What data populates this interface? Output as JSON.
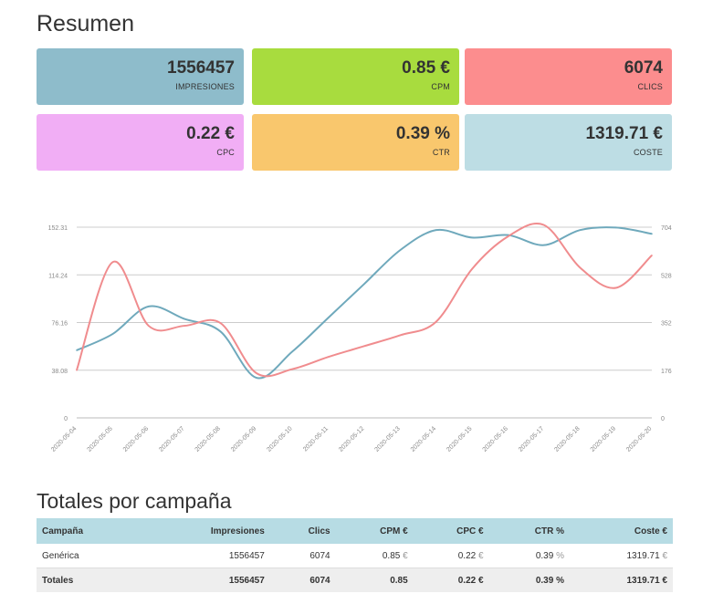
{
  "summary": {
    "title": "Resumen",
    "cards": [
      {
        "value": "1556457",
        "label": "IMPRESIONES",
        "color": "#8ebccb"
      },
      {
        "value": "0.85 €",
        "label": "CPM",
        "color": "#a8dc3e"
      },
      {
        "value": "6074",
        "label": "CLICS",
        "color": "#fc8d8e"
      },
      {
        "value": "0.22 €",
        "label": "CPC",
        "color": "#f1aef5"
      },
      {
        "value": "0.39 %",
        "label": "CTR",
        "color": "#f9c76d"
      },
      {
        "value": "1319.71 €",
        "label": "COSTE",
        "color": "#bddde4"
      }
    ]
  },
  "chart_data": {
    "type": "line",
    "x": [
      "2020-05-04",
      "2020-05-05",
      "2020-05-06",
      "2020-05-07",
      "2020-05-08",
      "2020-05-09",
      "2020-05-10",
      "2020-05-11",
      "2020-05-12",
      "2020-05-13",
      "2020-05-14",
      "2020-05-15",
      "2020-05-16",
      "2020-05-17",
      "2020-05-18",
      "2020-05-19",
      "2020-05-20"
    ],
    "left_axis": {
      "ticks": [
        "0",
        "38.08",
        "76.16",
        "114.24",
        "152.31"
      ],
      "range": [
        0,
        152.31
      ]
    },
    "right_axis": {
      "ticks": [
        "0",
        "176",
        "352",
        "528",
        "704"
      ],
      "range": [
        0,
        704
      ]
    },
    "grid": true,
    "series": [
      {
        "axis": "left",
        "color": "#6fa9bc",
        "values": [
          54,
          67,
          89,
          79,
          69,
          32,
          53,
          80,
          107,
          134,
          150,
          144,
          146,
          138,
          150,
          152,
          147
        ]
      },
      {
        "axis": "right",
        "color": "#f08c8e",
        "values": [
          176,
          575,
          340,
          340,
          350,
          165,
          180,
          225,
          265,
          305,
          355,
          550,
          670,
          712,
          555,
          480,
          600
        ]
      }
    ]
  },
  "campaigns": {
    "title": "Totales por campaña",
    "headers": [
      "Campaña",
      "Impresiones",
      "Clics",
      "CPM €",
      "CPC €",
      "CTR %",
      "Coste €"
    ],
    "rows": [
      {
        "name": "Genérica",
        "impressions": "1556457",
        "clicks": "6074",
        "cpm": "0.85",
        "cpm_unit": "€",
        "cpc": "0.22",
        "cpc_unit": "€",
        "ctr": "0.39",
        "ctr_unit": "%",
        "cost": "1319.71",
        "cost_unit": "€"
      }
    ],
    "totals": {
      "name": "Totales",
      "impressions": "1556457",
      "clicks": "6074",
      "cpm": "0.85",
      "cpc": "0.22 €",
      "ctr": "0.39 %",
      "cost": "1319.71 €"
    }
  }
}
